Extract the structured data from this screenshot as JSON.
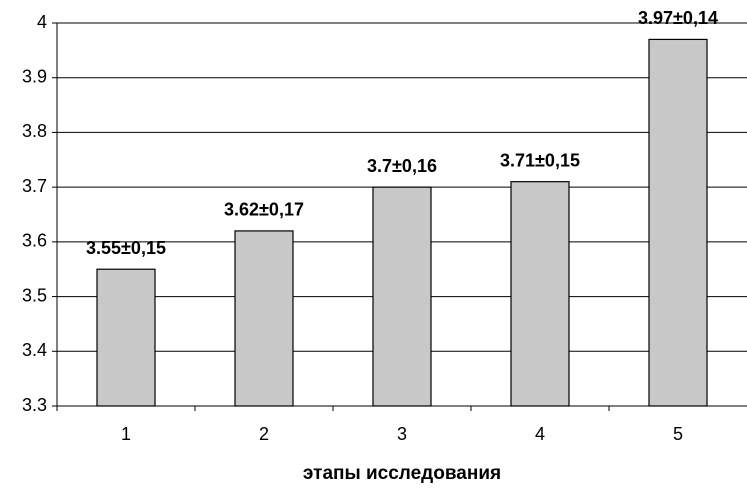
{
  "chart_data": {
    "type": "bar",
    "categories": [
      "1",
      "2",
      "3",
      "4",
      "5"
    ],
    "values": [
      3.55,
      3.62,
      3.7,
      3.71,
      3.97
    ],
    "value_labels": [
      "3.55±0,15",
      "3.62±0,17",
      "3.7±0,16",
      "3.71±0,15",
      "3.97±0,14"
    ],
    "color": "#c8c8c8",
    "x_label": "этапы исследования",
    "ylim": [
      3.3,
      4
    ],
    "yticks": [
      3.3,
      3.4,
      3.5,
      3.6,
      3.7,
      3.8,
      3.9,
      4
    ],
    "grid": true
  }
}
